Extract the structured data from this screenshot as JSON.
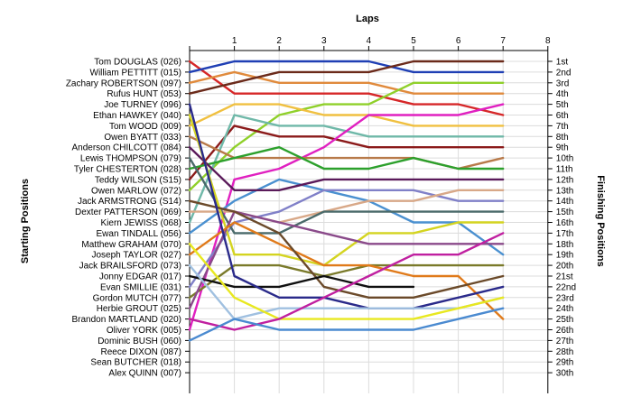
{
  "chart_data": {
    "type": "line",
    "title": "",
    "xlabel": "Laps",
    "ylabel_left": "Starting Positions",
    "ylabel_right": "Finishing Positions",
    "laps": [
      "1",
      "2",
      "3",
      "4",
      "5",
      "6",
      "7",
      "8"
    ],
    "starting_labels": [
      "Tom DOUGLAS (026)",
      "William PETTITT (015)",
      "Zachary ROBERTSON (097)",
      "Rufus HUNT (053)",
      "Joe TURNEY (096)",
      "Ethan HAWKEY (040)",
      "Tom WOOD (009)",
      "Owen BYATT (033)",
      "Anderson CHILCOTT (084)",
      "Lewis THOMPSON (079)",
      "Tyler CHESTERTON (028)",
      "Teddy WILSON (S15)",
      "Owen MARLOW (072)",
      "Jack ARMSTRONG (S14)",
      "Dexter PATTERSON (069)",
      "Kiern JEWISS (068)",
      "Ewan TINDALL (056)",
      "Matthew GRAHAM (070)",
      "Joseph TAYLOR (027)",
      "Jack BRAILSFORD (073)",
      "Jonny EDGAR (017)",
      "Evan SMILLIE (031)",
      "Gordon MUTCH (077)",
      "Herbie GROUT (025)",
      "Brandon MARTLAND (020)",
      "Oliver YORK (005)",
      "Dominic BUSH (060)",
      "Reece DIXON (087)",
      "Sean BUTCHER (018)",
      "Alex QUINN (007)"
    ],
    "finishing_labels": [
      "1st",
      "2nd",
      "3rd",
      "4th",
      "5th",
      "6th",
      "7th",
      "8th",
      "9th",
      "10th",
      "11th",
      "12th",
      "13th",
      "14th",
      "15th",
      "16th",
      "17th",
      "18th",
      "19th",
      "20th",
      "21st",
      "22nd",
      "23rd",
      "24th",
      "25th",
      "26th",
      "27th",
      "28th",
      "29th",
      "30th"
    ],
    "series": [
      {
        "color": "#d62728",
        "positions": [
          1,
          4,
          4,
          4,
          4,
          5,
          5,
          6
        ]
      },
      {
        "color": "#1f3fb4",
        "positions": [
          2,
          1,
          1,
          1,
          1,
          2,
          2,
          2
        ]
      },
      {
        "color": "#e08a3c",
        "positions": [
          3,
          2,
          3,
          3,
          3,
          4,
          4,
          4
        ]
      },
      {
        "color": "#6b2a1a",
        "positions": [
          4,
          3,
          2,
          2,
          2,
          1,
          1,
          1
        ]
      },
      {
        "color": "#8fd02a",
        "positions": [
          13,
          9,
          6,
          5,
          5,
          3,
          3,
          3
        ]
      },
      {
        "color": "#8b1a1a",
        "positions": [
          12,
          7,
          8,
          8,
          9,
          9,
          9,
          9
        ]
      },
      {
        "color": "#f0c040",
        "positions": [
          7,
          5,
          5,
          6,
          6,
          7,
          7,
          7
        ]
      },
      {
        "color": "#6fb8a8",
        "positions": [
          16,
          6,
          7,
          7,
          8,
          8,
          8,
          8
        ]
      },
      {
        "color": "#e020c0",
        "positions": [
          26,
          12,
          11,
          9,
          6,
          6,
          6,
          5
        ]
      },
      {
        "color": "#b87a4a",
        "positions": [
          8,
          10,
          10,
          10,
          10,
          10,
          11,
          10
        ]
      },
      {
        "color": "#2ca02c",
        "positions": [
          11,
          10,
          9,
          11,
          11,
          10,
          11,
          11
        ]
      },
      {
        "color": "#4a90d0",
        "positions": [
          17,
          14,
          12,
          13,
          14,
          16,
          16,
          19
        ]
      },
      {
        "color": "#8080c8",
        "positions": [
          22,
          16,
          15,
          13,
          13,
          13,
          14,
          14
        ]
      },
      {
        "color": "#5a1a5a",
        "positions": [
          9,
          13,
          13,
          12,
          12,
          12,
          12,
          12
        ]
      },
      {
        "color": "#d8a888",
        "positions": [
          15,
          15,
          16,
          15,
          14,
          14,
          13,
          13
        ]
      },
      {
        "color": "#4a6a6a",
        "positions": [
          10,
          17,
          17,
          15,
          15,
          15,
          15,
          15
        ]
      },
      {
        "color": "#7a7a2a",
        "positions": [
          23,
          20,
          20,
          21,
          20,
          20,
          20,
          20
        ]
      },
      {
        "color": "#d4d420",
        "positions": [
          6,
          19,
          19,
          20,
          17,
          17,
          16,
          16
        ]
      },
      {
        "color": "#8a4a8a",
        "positions": [
          24,
          15,
          16,
          17,
          18,
          18,
          18,
          18
        ]
      },
      {
        "color": "#e07a1a",
        "positions": [
          19,
          16,
          18,
          20,
          20,
          21,
          21,
          25
        ]
      },
      {
        "color": "#6b4a2a",
        "positions": [
          14,
          15,
          17,
          22,
          23,
          23,
          22,
          21
        ]
      },
      {
        "color": "#101010",
        "positions": [
          21,
          22,
          22,
          21,
          22,
          22,
          null,
          null
        ]
      },
      {
        "color": "#2a2a8a",
        "positions": [
          5,
          21,
          23,
          23,
          24,
          24,
          23,
          22
        ]
      },
      {
        "color": "#a0c0e0",
        "positions": [
          20,
          25,
          24,
          24,
          24,
          24,
          24,
          23
        ]
      },
      {
        "color": "#e8e820",
        "positions": [
          18,
          23,
          25,
          25,
          25,
          25,
          24,
          23
        ]
      },
      {
        "color": "#c020a0",
        "positions": [
          25,
          26,
          25,
          23,
          21,
          19,
          19,
          17
        ]
      },
      {
        "color": "#4a8ad0",
        "positions": [
          27,
          25,
          26,
          26,
          26,
          26,
          25,
          24
        ]
      }
    ]
  }
}
